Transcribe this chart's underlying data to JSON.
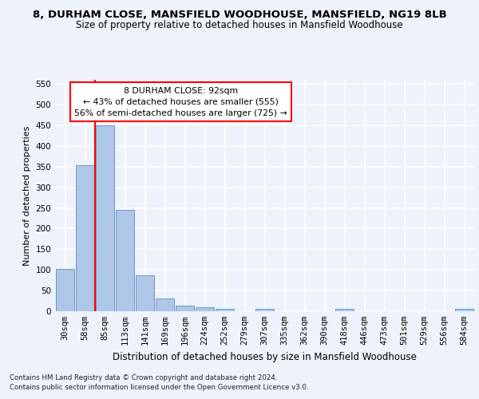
{
  "title": "8, DURHAM CLOSE, MANSFIELD WOODHOUSE, MANSFIELD, NG19 8LB",
  "subtitle": "Size of property relative to detached houses in Mansfield Woodhouse",
  "xlabel": "Distribution of detached houses by size in Mansfield Woodhouse",
  "ylabel": "Number of detached properties",
  "footnote1": "Contains HM Land Registry data © Crown copyright and database right 2024.",
  "footnote2": "Contains public sector information licensed under the Open Government Licence v3.0.",
  "bin_labels": [
    "30sqm",
    "58sqm",
    "85sqm",
    "113sqm",
    "141sqm",
    "169sqm",
    "196sqm",
    "224sqm",
    "252sqm",
    "279sqm",
    "307sqm",
    "335sqm",
    "362sqm",
    "390sqm",
    "418sqm",
    "446sqm",
    "473sqm",
    "501sqm",
    "529sqm",
    "556sqm",
    "584sqm"
  ],
  "bar_values": [
    103,
    353,
    449,
    245,
    87,
    30,
    13,
    9,
    6,
    0,
    6,
    0,
    0,
    0,
    6,
    0,
    0,
    0,
    0,
    0,
    5
  ],
  "bar_color": "#aec6e8",
  "bar_edge_color": "#5a8fc2",
  "vline_x_index": 2,
  "vline_color": "red",
  "annotation_text": "8 DURHAM CLOSE: 92sqm\n← 43% of detached houses are smaller (555)\n56% of semi-detached houses are larger (725) →",
  "annotation_box_color": "white",
  "annotation_box_edge": "red",
  "ylim": [
    0,
    560
  ],
  "yticks": [
    0,
    50,
    100,
    150,
    200,
    250,
    300,
    350,
    400,
    450,
    500,
    550
  ],
  "background_color": "#eef2fb",
  "grid_color": "#ffffff",
  "title_fontsize": 9.5,
  "subtitle_fontsize": 8.5,
  "tick_fontsize": 7.5,
  "ylabel_fontsize": 8.0,
  "xlabel_fontsize": 8.5
}
